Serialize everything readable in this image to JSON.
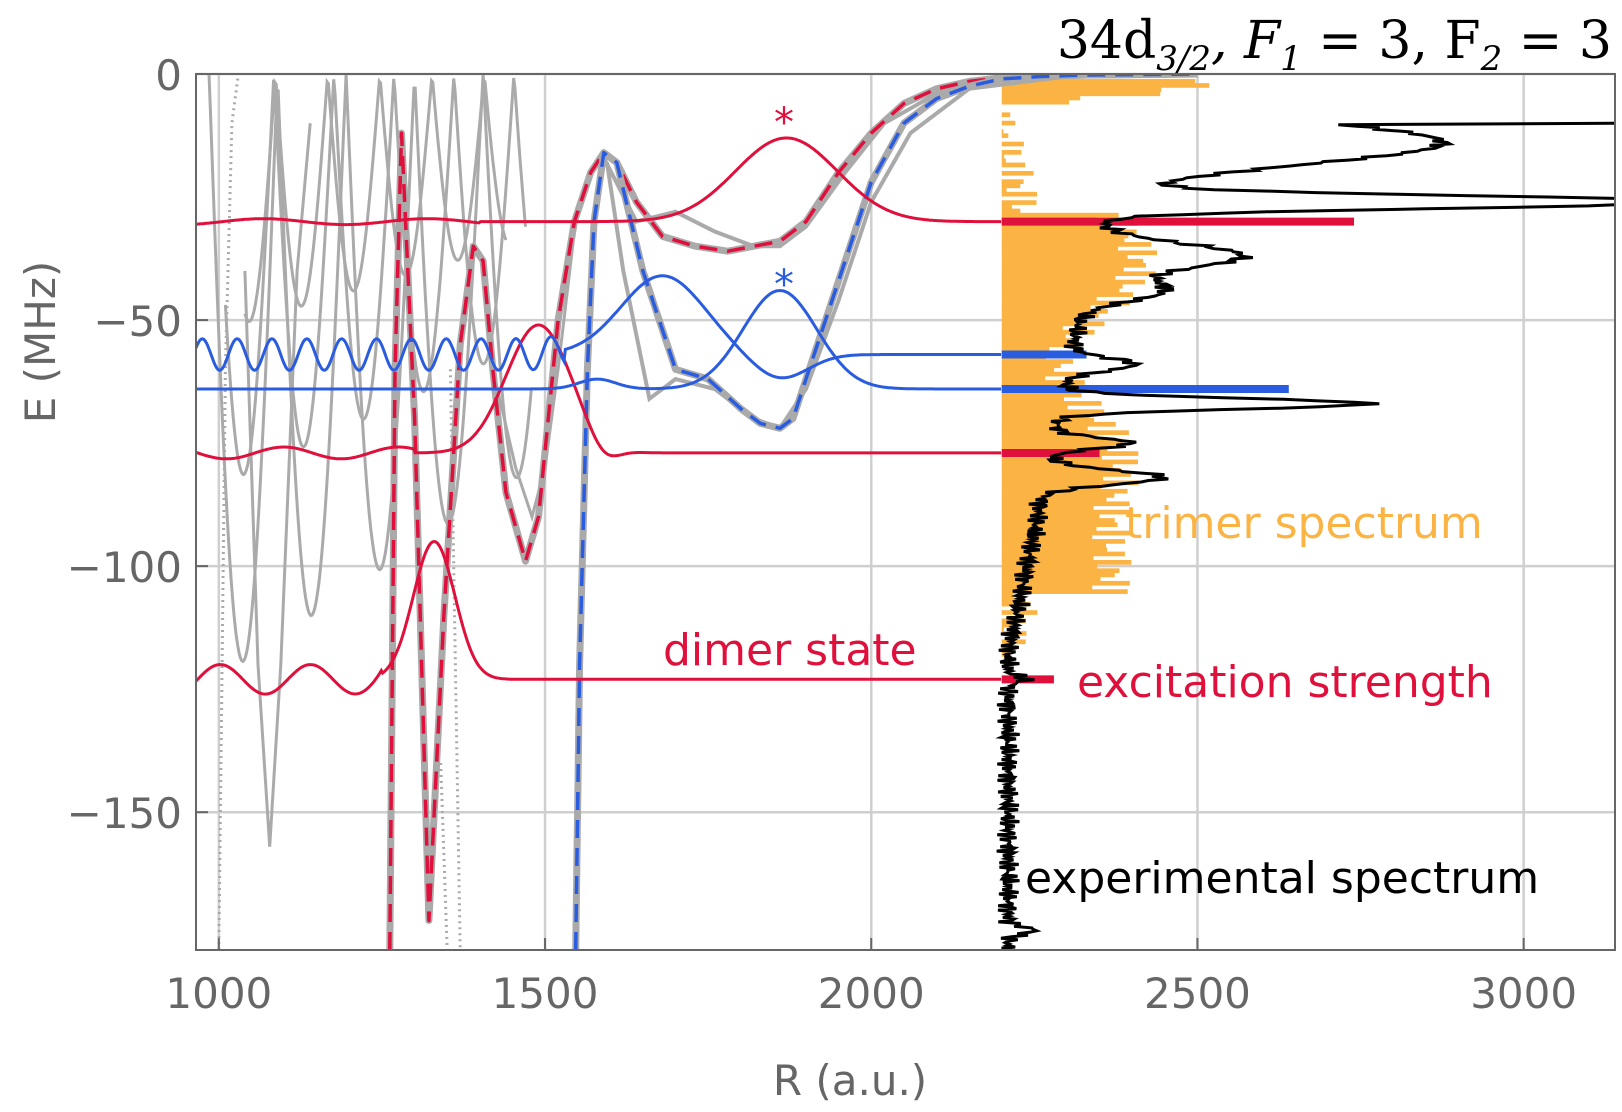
{
  "chart_data": {
    "type": "line",
    "title": "34d_{3/2}, F_1 = 3, F_2 = 3",
    "title_parts": {
      "main": "34d",
      "sub": "3/2",
      "rest": ", F",
      "sub1": "1",
      "eq1": " = 3, F",
      "sub2": "2",
      "eq2": " = 3"
    },
    "xlabel": "R (a.u.)",
    "ylabel": "E (MHz)",
    "xlim": [
      965,
      3140
    ],
    "ylim": [
      -178,
      0
    ],
    "x_ticks": [
      1000,
      1500,
      2000,
      2500,
      3000
    ],
    "x_tick_labels": [
      "1000",
      "1500",
      "2000",
      "2500",
      "3000"
    ],
    "y_ticks": [
      0,
      -50,
      -100,
      -150
    ],
    "y_tick_labels": [
      "0",
      "−50",
      "−100",
      "−150"
    ],
    "grid": true,
    "colors": {
      "red": "#e0103c",
      "blue": "#2a5ce0",
      "orange": "#fbb444",
      "gray": "#aaaaaa",
      "black": "#000000",
      "axis": "#666666"
    },
    "annotations": {
      "trimer": "trimer spectrum",
      "dimer": "dimer state",
      "excitation": "excitation strength",
      "experimental": "experimental spectrum",
      "star_red": "*",
      "star_blue": "*"
    },
    "spectrum_baseline_R": 2200,
    "red_levels": [
      {
        "energy": -30,
        "label_pos": -13,
        "strength_R": 2740
      },
      {
        "energy": -77,
        "strength_R": 2350
      },
      {
        "energy": -123,
        "strength_R": 2280
      }
    ],
    "blue_levels": [
      {
        "energy": -57,
        "strength_R": 2330
      },
      {
        "energy": -64,
        "strength_R": 2640
      }
    ],
    "series": [
      {
        "name": "red potential (dashed)",
        "x": [
          1262,
          1270,
          1280,
          1300,
          1322,
          1345,
          1370,
          1390,
          1405,
          1420,
          1440,
          1470,
          1490,
          1520,
          1545,
          1570,
          1590,
          1610,
          1640,
          1680,
          1730,
          1780,
          1820,
          1860,
          1900,
          1950,
          2000,
          2050,
          2100,
          2150,
          2200,
          2260,
          2330,
          2420,
          2500
        ],
        "values": [
          -178,
          -60,
          -12,
          -70,
          -172,
          -110,
          -55,
          -35,
          -38,
          -60,
          -85,
          -99,
          -90,
          -50,
          -30,
          -20,
          -16,
          -18,
          -26,
          -33,
          -35,
          -36,
          -35,
          -34,
          -30,
          -20,
          -12,
          -6,
          -3,
          -1.5,
          -0.8,
          -0.4,
          -0.2,
          -0.1,
          0
        ]
      },
      {
        "name": "blue potential (dashed)",
        "x": [
          1547,
          1553,
          1565,
          1575,
          1590,
          1610,
          1650,
          1700,
          1750,
          1800,
          1830,
          1860,
          1880,
          1900,
          1950,
          2000,
          2050,
          2100,
          2150,
          2200,
          2260,
          2330,
          2420,
          2500
        ],
        "values": [
          -178,
          -120,
          -60,
          -30,
          -16,
          -18,
          -40,
          -60,
          -62,
          -68,
          -71,
          -72,
          -70,
          -62,
          -42,
          -22,
          -10,
          -5,
          -2.5,
          -1,
          -0.5,
          -0.2,
          -0.1,
          0
        ]
      },
      {
        "name": "experimental spectrum",
        "x": [
          2200,
          2205,
          2210,
          2215,
          2220,
          2225,
          2235,
          2250,
          2270,
          2290,
          2310,
          2300,
          2320,
          2330,
          2350,
          2380,
          2420,
          2460,
          2500,
          2540,
          2580,
          2620,
          2660,
          2700,
          2740,
          2780,
          2820,
          2840,
          2830,
          2800,
          2760,
          2700,
          2640,
          2600,
          2560,
          2520,
          2470,
          2430,
          2380,
          2340,
          2300,
          2270,
          2250,
          2230,
          2215,
          2210,
          2205,
          2200
        ],
        "values": [
          -178,
          -172,
          -160,
          -145,
          -130,
          -123,
          -115,
          -100,
          -90,
          -82,
          -77,
          -72,
          -68,
          -64,
          -60,
          -58,
          -56,
          -52,
          -48,
          -44,
          -40,
          -36,
          -33,
          -30,
          -26,
          -22,
          -18,
          -14,
          -12,
          -10,
          -9,
          -12,
          -14,
          -18,
          -22,
          -26,
          -40,
          -48,
          -55,
          -62,
          -68,
          -74,
          -80,
          -90,
          -100,
          -120,
          -140,
          -160
        ]
      }
    ]
  }
}
